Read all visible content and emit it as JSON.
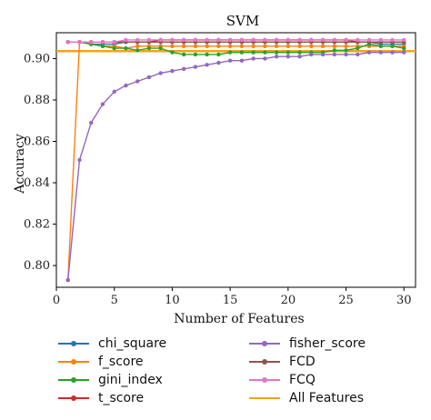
{
  "chart_data": {
    "type": "line",
    "title": "SVM",
    "xlabel": "Number of Features",
    "ylabel": "Accuracy",
    "xlim": [
      0,
      31
    ],
    "ylim": [
      0.7895,
      0.9125
    ],
    "xticks": [
      "0",
      "5",
      "10",
      "15",
      "20",
      "25",
      "30"
    ],
    "yticks": [
      "0.80",
      "0.82",
      "0.84",
      "0.86",
      "0.88",
      "0.90"
    ],
    "x": [
      1,
      2,
      3,
      4,
      5,
      6,
      7,
      8,
      9,
      10,
      11,
      12,
      13,
      14,
      15,
      16,
      17,
      18,
      19,
      20,
      21,
      22,
      23,
      24,
      25,
      26,
      27,
      28,
      29,
      30
    ],
    "grid": false,
    "legend_position": "below",
    "series": [
      {
        "name": "chi_square",
        "color": "#1f77b4",
        "values": [
          0.908,
          0.908,
          0.907,
          0.907,
          0.907,
          0.908,
          0.908,
          0.908,
          0.908,
          0.908,
          0.908,
          0.908,
          0.908,
          0.908,
          0.908,
          0.908,
          0.908,
          0.908,
          0.908,
          0.908,
          0.908,
          0.908,
          0.908,
          0.908,
          0.908,
          0.908,
          0.908,
          0.907,
          0.907,
          0.907
        ]
      },
      {
        "name": "f_score",
        "color": "#ff7f0e",
        "values": [
          0.793,
          0.908,
          0.907,
          0.906,
          0.906,
          0.905,
          0.906,
          0.906,
          0.906,
          0.906,
          0.906,
          0.906,
          0.906,
          0.906,
          0.906,
          0.906,
          0.906,
          0.906,
          0.906,
          0.906,
          0.906,
          0.906,
          0.906,
          0.906,
          0.906,
          0.906,
          0.906,
          0.906,
          0.906,
          0.906
        ]
      },
      {
        "name": "gini_index",
        "color": "#2ca02c",
        "values": [
          0.908,
          0.908,
          0.907,
          0.906,
          0.905,
          0.905,
          0.904,
          0.905,
          0.905,
          0.903,
          0.902,
          0.902,
          0.902,
          0.902,
          0.903,
          0.903,
          0.903,
          0.903,
          0.903,
          0.903,
          0.903,
          0.903,
          0.903,
          0.904,
          0.904,
          0.905,
          0.907,
          0.906,
          0.906,
          0.905
        ]
      },
      {
        "name": "t_score",
        "color": "#d62728",
        "values": [
          0.908,
          0.908,
          0.908,
          0.908,
          0.908,
          0.908,
          0.908,
          0.908,
          0.909,
          0.909,
          0.909,
          0.909,
          0.909,
          0.909,
          0.909,
          0.909,
          0.909,
          0.909,
          0.909,
          0.909,
          0.909,
          0.909,
          0.909,
          0.909,
          0.909,
          0.908,
          0.908,
          0.908,
          0.908,
          0.908
        ]
      },
      {
        "name": "fisher_score",
        "color": "#9467bd",
        "values": [
          0.793,
          0.851,
          0.869,
          0.878,
          0.884,
          0.887,
          0.889,
          0.891,
          0.893,
          0.894,
          0.895,
          0.896,
          0.897,
          0.898,
          0.899,
          0.899,
          0.9,
          0.9,
          0.901,
          0.901,
          0.901,
          0.902,
          0.902,
          0.902,
          0.902,
          0.902,
          0.903,
          0.903,
          0.903,
          0.903
        ]
      },
      {
        "name": "FCD",
        "color": "#8c564b",
        "values": [
          0.908,
          0.908,
          0.908,
          0.908,
          0.908,
          0.908,
          0.908,
          0.908,
          0.908,
          0.908,
          0.908,
          0.908,
          0.908,
          0.908,
          0.908,
          0.908,
          0.908,
          0.908,
          0.908,
          0.908,
          0.908,
          0.908,
          0.908,
          0.908,
          0.908,
          0.908,
          0.908,
          0.908,
          0.908,
          0.908
        ]
      },
      {
        "name": "FCQ",
        "color": "#e377c2",
        "values": [
          0.908,
          0.908,
          0.908,
          0.908,
          0.908,
          0.909,
          0.909,
          0.909,
          0.909,
          0.909,
          0.909,
          0.909,
          0.909,
          0.909,
          0.909,
          0.909,
          0.909,
          0.909,
          0.909,
          0.909,
          0.909,
          0.909,
          0.909,
          0.909,
          0.909,
          0.909,
          0.909,
          0.909,
          0.909,
          0.909
        ]
      }
    ],
    "reference_line": {
      "name": "All Features",
      "color": "#f5a31a",
      "value": 0.9036
    }
  }
}
